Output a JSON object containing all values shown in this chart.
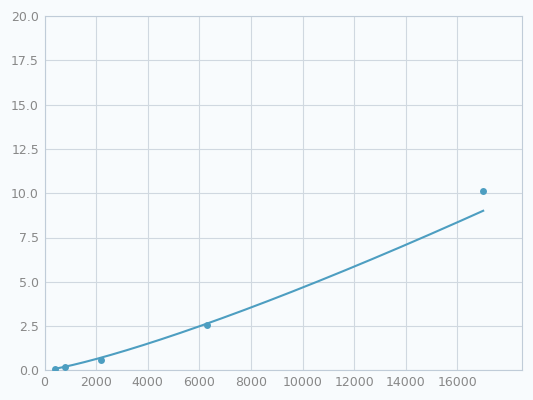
{
  "x": [
    400,
    800,
    2200,
    6300,
    17000
  ],
  "y": [
    0.1,
    0.2,
    0.6,
    2.55,
    10.1
  ],
  "line_color": "#4d9ec1",
  "marker_color": "#4d9ec1",
  "marker_size": 5,
  "xlim": [
    0,
    18500
  ],
  "ylim": [
    0,
    20.0
  ],
  "xticks": [
    0,
    2000,
    4000,
    6000,
    8000,
    10000,
    12000,
    14000,
    16000
  ],
  "yticks": [
    0.0,
    2.5,
    5.0,
    7.5,
    10.0,
    12.5,
    15.0,
    17.5,
    20.0
  ],
  "grid_color": "#d0d8e0",
  "background_color": "#f8fbfd",
  "spine_color": "#c0ccd8",
  "tick_label_color": "#888888",
  "tick_label_size": 9,
  "linewidth": 1.5,
  "figsize": [
    5.33,
    4.0
  ],
  "dpi": 100
}
